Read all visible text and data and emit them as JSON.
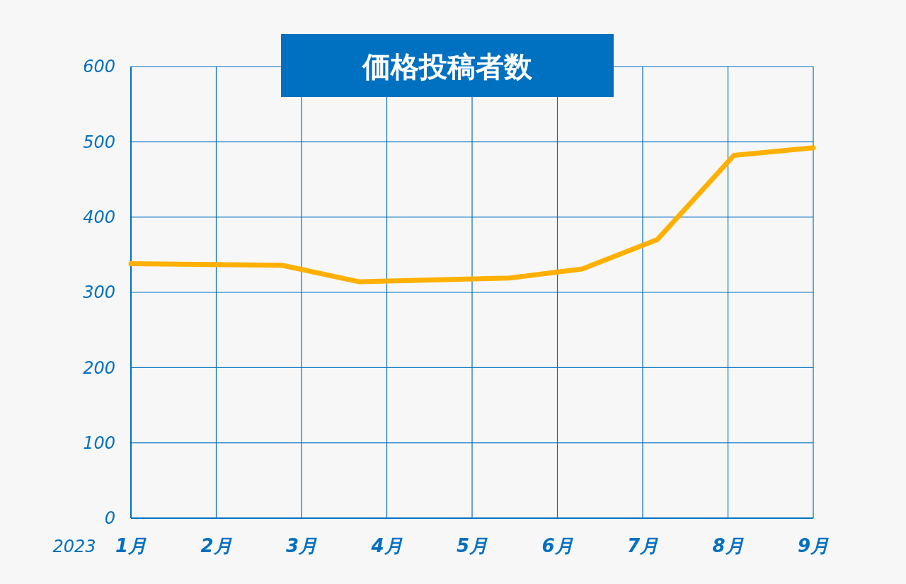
{
  "chart_data": {
    "type": "line",
    "title": "価格投稿者数",
    "x": [
      1,
      2.77,
      3.68,
      5.44,
      6.29,
      7.17,
      8.07,
      9
    ],
    "series": [
      {
        "color": "#ffb000",
        "values": [
          338,
          336,
          314,
          319,
          331,
          370,
          482,
          492
        ]
      }
    ],
    "xlim": [
      1,
      9
    ],
    "xticks": [
      {
        "value": 1,
        "label": "1月"
      },
      {
        "value": 2,
        "label": "2月"
      },
      {
        "value": 3,
        "label": "3月"
      },
      {
        "value": 4,
        "label": "4月"
      },
      {
        "value": 5,
        "label": "5月"
      },
      {
        "value": 6,
        "label": "6月"
      },
      {
        "value": 7,
        "label": "7月"
      },
      {
        "value": 8,
        "label": "8月"
      },
      {
        "value": 9,
        "label": "9月"
      }
    ],
    "ylim": [
      0,
      600
    ],
    "yticks": [
      0,
      100,
      200,
      300,
      400,
      500,
      600
    ],
    "annotations": [
      "2023"
    ],
    "grid": true,
    "marker": "none",
    "line_style": "solid"
  }
}
